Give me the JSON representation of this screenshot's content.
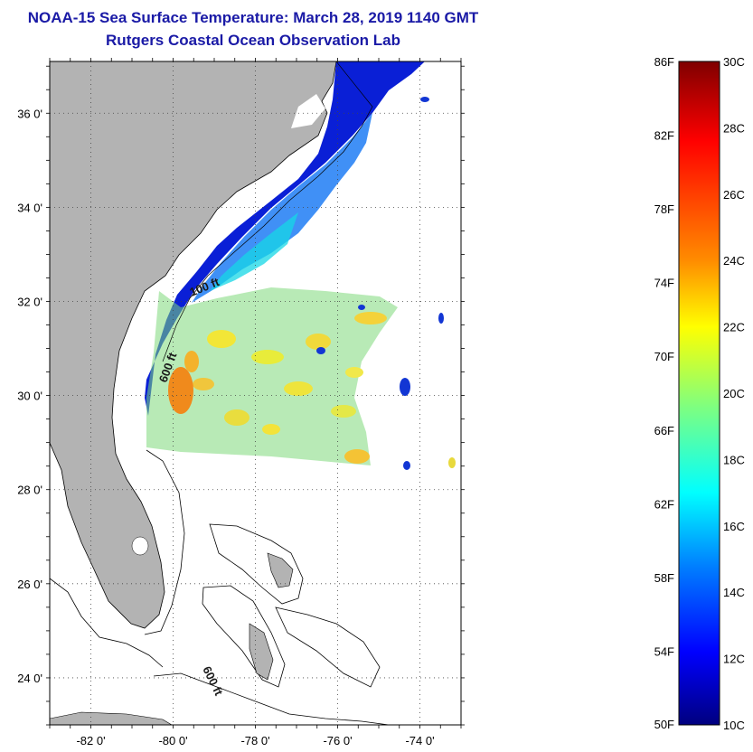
{
  "header": {
    "title": "NOAA-15 Sea Surface Temperature:  March 28, 2019 1140 GMT",
    "subtitle": "Rutgers Coastal Ocean Observation Lab"
  },
  "map": {
    "lat_ticks": [
      {
        "value": 36,
        "label": "36 0'"
      },
      {
        "value": 34,
        "label": "34 0'"
      },
      {
        "value": 32,
        "label": "32 0'"
      },
      {
        "value": 30,
        "label": "30 0'"
      },
      {
        "value": 28,
        "label": "28 0'"
      },
      {
        "value": 26,
        "label": "26 0'"
      },
      {
        "value": 24,
        "label": "24 0'"
      }
    ],
    "lon_ticks": [
      {
        "value": -82,
        "label": "-82 0'"
      },
      {
        "value": -80,
        "label": "-80 0'"
      },
      {
        "value": -78,
        "label": "-78 0'"
      },
      {
        "value": -76,
        "label": "-76 0'"
      },
      {
        "value": -74,
        "label": "-74 0'"
      }
    ],
    "lat_range": [
      23,
      37.1
    ],
    "lon_range": [
      -83,
      -73
    ],
    "contours": [
      {
        "label": "100 ft"
      },
      {
        "label": "600 ft"
      },
      {
        "label": "600 ft"
      }
    ],
    "land_color": "#b3b3b3"
  },
  "colorbar": {
    "f_labels": [
      "86F",
      "82F",
      "78F",
      "74F",
      "70F",
      "66F",
      "62F",
      "58F",
      "54F",
      "50F"
    ],
    "c_labels": [
      "30C",
      "28C",
      "26C",
      "24C",
      "22C",
      "20C",
      "18C",
      "16C",
      "14C",
      "12C",
      "10C"
    ],
    "colors": [
      "#7f0000",
      "#ff0000",
      "#ff8c00",
      "#ffff00",
      "#7fff7f",
      "#00ffff",
      "#0080ff",
      "#0000ff",
      "#00007f"
    ]
  }
}
